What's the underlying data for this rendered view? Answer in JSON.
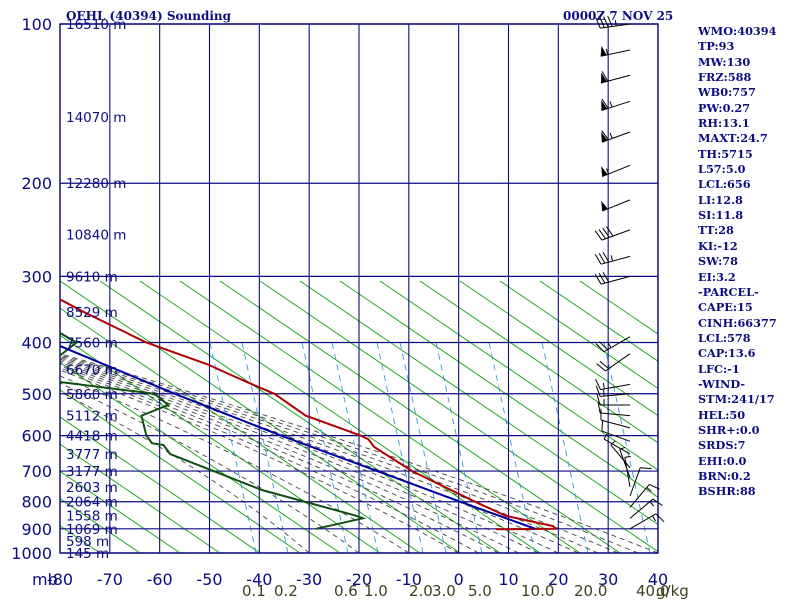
{
  "header": {
    "title": "OEHL (40394) Sounding",
    "datetime": "0000Z  7 NOV 25"
  },
  "indices": [
    "WMO:40394",
    "TP:93",
    "MW:130",
    "FRZ:588",
    "WB0:757",
    "PW:0.27",
    "RH:13.1",
    "MAXT:24.7",
    "TH:5715",
    "L57:5.0",
    "LCL:656",
    "LI:12.8",
    "SI:11.8",
    "TT:28",
    "KI:-12",
    "SW:78",
    "EI:3.2",
    "-PARCEL-",
    "CAPE:15",
    "CINH:66377",
    "LCL:578",
    "CAP:13.6",
    "LFC:-1",
    "-WIND-",
    "STM:241/17",
    "HEL:50",
    "SHR+:0.0",
    "SRDS:7",
    "EHI:0.0",
    "BRN:0.2",
    "BSHR:88"
  ],
  "colors": {
    "frame": "#0c0c80",
    "temperature": "#b00000",
    "dewpoint": "#0f4f0f",
    "parcel": "#0000a0",
    "dry_adiabats": "#22aa22",
    "moist_adiabats": "#444444",
    "mixing_ratio": "#3399dd",
    "text": "#0c0c80",
    "mixing_ratio_labels": "#404020"
  },
  "chart_data": {
    "type": "skew-t log-p sounding",
    "y_axis_unit_label": "mb",
    "pressure_levels": [
      100,
      200,
      300,
      400,
      500,
      600,
      700,
      800,
      900,
      1000
    ],
    "pressure_range": [
      100,
      1000
    ],
    "temperature_ticks": [
      -80,
      -70,
      -60,
      -50,
      -40,
      -30,
      -20,
      -10,
      0,
      10,
      20,
      30,
      40
    ],
    "temperature_range": [
      -80,
      40
    ],
    "height_labels": [
      {
        "p": 100,
        "label": "16510 m"
      },
      {
        "p": 150,
        "label": "14070 m"
      },
      {
        "p": 200,
        "label": "12280 m"
      },
      {
        "p": 250,
        "label": "10840 m"
      },
      {
        "p": 300,
        "label": "9610 m"
      },
      {
        "p": 350,
        "label": "8529 m"
      },
      {
        "p": 400,
        "label": "7560 m"
      },
      {
        "p": 450,
        "label": "6670 m"
      },
      {
        "p": 500,
        "label": "5860 m"
      },
      {
        "p": 550,
        "label": "5112 m"
      },
      {
        "p": 600,
        "label": "4418 m"
      },
      {
        "p": 650,
        "label": "3777 m"
      },
      {
        "p": 700,
        "label": "3177 m"
      },
      {
        "p": 750,
        "label": "2603 m"
      },
      {
        "p": 800,
        "label": "2064 m"
      },
      {
        "p": 850,
        "label": "1558 m"
      },
      {
        "p": 900,
        "label": "1069 m"
      },
      {
        "p": 950,
        "label": "598 m"
      },
      {
        "p": 1000,
        "label": "145 m"
      }
    ],
    "mixing_ratio_lines": [
      "0.1",
      "0.2",
      "0.6",
      "1.0",
      "2.0",
      "3.0",
      "5.0",
      "10.0",
      "20.0",
      "40.0"
    ],
    "mixing_ratio_unit": "g/kg",
    "series": [
      {
        "name": "temperature",
        "points": [
          [
            100,
            -80
          ],
          [
            113,
            -78
          ],
          [
            130,
            -78
          ],
          [
            150,
            -72
          ],
          [
            175,
            -69
          ],
          [
            200,
            -67
          ],
          [
            210,
            -68
          ],
          [
            240,
            -59
          ],
          [
            270,
            -53
          ],
          [
            300,
            -47
          ],
          [
            350,
            -39
          ],
          [
            400,
            -31
          ],
          [
            440,
            -22
          ],
          [
            460,
            -19
          ],
          [
            480,
            -16
          ],
          [
            500,
            -13
          ],
          [
            550,
            -10
          ],
          [
            600,
            -2
          ],
          [
            610,
            -1
          ],
          [
            630,
            -1
          ],
          [
            700,
            3
          ],
          [
            800,
            11
          ],
          [
            850,
            15
          ],
          [
            870,
            19
          ],
          [
            890,
            23
          ],
          [
            900,
            23
          ],
          [
            902,
            11
          ]
        ]
      },
      {
        "name": "dewpoint",
        "points": [
          [
            150,
            -86
          ],
          [
            200,
            -79
          ],
          [
            210,
            -79
          ],
          [
            220,
            -73
          ],
          [
            250,
            -71
          ],
          [
            255,
            -69
          ],
          [
            260,
            -66
          ],
          [
            300,
            -64
          ],
          [
            325,
            -64
          ],
          [
            350,
            -51
          ],
          [
            400,
            -45
          ],
          [
            460,
            -58
          ],
          [
            470,
            -58
          ],
          [
            500,
            -37
          ],
          [
            525,
            -36
          ],
          [
            550,
            -43
          ],
          [
            600,
            -45
          ],
          [
            620,
            -45
          ],
          [
            625,
            -43
          ],
          [
            650,
            -43
          ],
          [
            760,
            -30
          ],
          [
            850,
            -15
          ],
          [
            860,
            -14
          ],
          [
            900,
            -25
          ]
        ]
      },
      {
        "name": "parcel",
        "points": [
          [
            160,
            -100
          ],
          [
            300,
            -70
          ],
          [
            400,
            -50
          ],
          [
            500,
            -33
          ],
          [
            600,
            -18
          ],
          [
            700,
            -4
          ],
          [
            800,
            8
          ],
          [
            900,
            19
          ]
        ]
      }
    ],
    "wind_barbs": [
      {
        "p": 100,
        "dir": 262,
        "spd": 45
      },
      {
        "p": 112,
        "dir": 258,
        "spd": 55
      },
      {
        "p": 125,
        "dir": 255,
        "spd": 60
      },
      {
        "p": 140,
        "dir": 252,
        "spd": 65
      },
      {
        "p": 160,
        "dir": 250,
        "spd": 65
      },
      {
        "p": 185,
        "dir": 248,
        "spd": 55
      },
      {
        "p": 215,
        "dir": 248,
        "spd": 50
      },
      {
        "p": 245,
        "dir": 250,
        "spd": 40
      },
      {
        "p": 275,
        "dir": 255,
        "spd": 35
      },
      {
        "p": 300,
        "dir": 255,
        "spd": 30
      },
      {
        "p": 390,
        "dir": 240,
        "spd": 25
      },
      {
        "p": 420,
        "dir": 235,
        "spd": 20
      },
      {
        "p": 480,
        "dir": 260,
        "spd": 15
      },
      {
        "p": 500,
        "dir": 265,
        "spd": 15
      },
      {
        "p": 525,
        "dir": 270,
        "spd": 15
      },
      {
        "p": 550,
        "dir": 275,
        "spd": 10
      },
      {
        "p": 580,
        "dir": 285,
        "spd": 10
      },
      {
        "p": 615,
        "dir": 290,
        "spd": 10
      },
      {
        "p": 650,
        "dir": 300,
        "spd": 5
      },
      {
        "p": 690,
        "dir": 320,
        "spd": 5
      },
      {
        "p": 720,
        "dir": 340,
        "spd": 5
      },
      {
        "p": 750,
        "dir": 350,
        "spd": 5
      },
      {
        "p": 780,
        "dir": 20,
        "spd": 10
      },
      {
        "p": 820,
        "dir": 40,
        "spd": 15
      },
      {
        "p": 860,
        "dir": 50,
        "spd": 15
      },
      {
        "p": 900,
        "dir": 60,
        "spd": 15
      }
    ]
  }
}
